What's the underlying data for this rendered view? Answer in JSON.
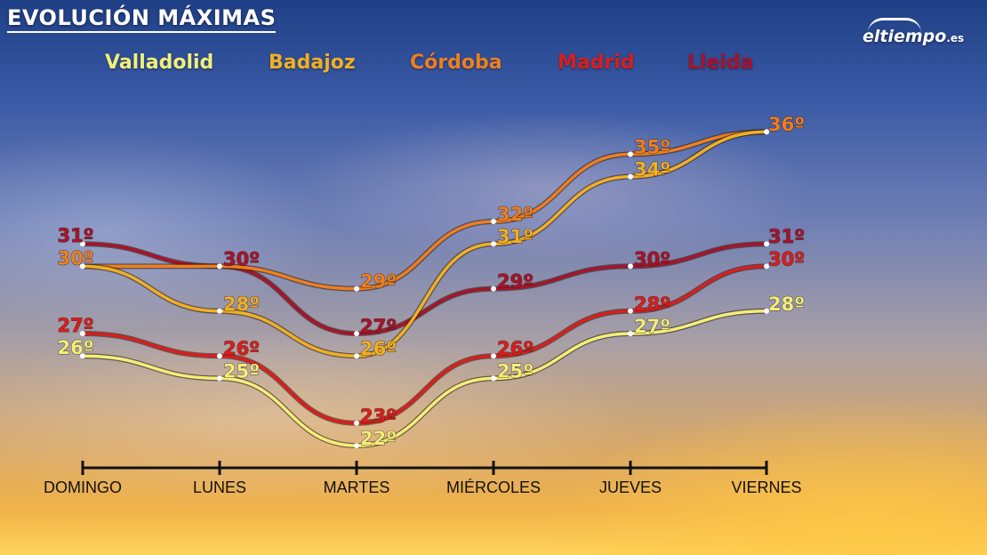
{
  "title": "EVOLUCIÓN MÁXIMAS",
  "logo": {
    "name": "eltiempo",
    "suffix": ".es",
    "icon": "cloud-icon"
  },
  "chart_data": {
    "type": "line",
    "title": "EVOLUCIÓN MÁXIMAS",
    "categories": [
      "DOMINGO",
      "LUNES",
      "MARTES",
      "MIÉRCOLES",
      "JUEVES",
      "VIERNES"
    ],
    "unit": "º",
    "ylim": [
      22,
      36
    ],
    "grid": false,
    "legend_position": "top",
    "series": [
      {
        "name": "Valladolid",
        "color": "#f2ef7a",
        "values": [
          26,
          25,
          22,
          25,
          27,
          28
        ]
      },
      {
        "name": "Badajoz",
        "color": "#f0b024",
        "values": [
          30,
          28,
          26,
          31,
          34,
          36
        ]
      },
      {
        "name": "Córdoba",
        "color": "#ee7f1e",
        "values": [
          30,
          30,
          29,
          32,
          35,
          36
        ]
      },
      {
        "name": "Madrid",
        "color": "#d81e1e",
        "values": [
          27,
          26,
          23,
          26,
          28,
          30
        ]
      },
      {
        "name": "Lleida",
        "color": "#a5142a",
        "values": [
          31,
          30,
          27,
          29,
          30,
          31
        ]
      }
    ],
    "data_labels": [
      {
        "series": "Lleida",
        "index": 0,
        "text": "31º"
      },
      {
        "series": "Córdoba",
        "index": 0,
        "text": "30º"
      },
      {
        "series": "Madrid",
        "index": 0,
        "text": "27º"
      },
      {
        "series": "Valladolid",
        "index": 0,
        "text": "26º"
      },
      {
        "series": "Lleida",
        "index": 1,
        "text": "30º"
      },
      {
        "series": "Badajoz",
        "index": 1,
        "text": "28º"
      },
      {
        "series": "Madrid",
        "index": 1,
        "text": "26º"
      },
      {
        "series": "Valladolid",
        "index": 1,
        "text": "25º"
      },
      {
        "series": "Córdoba",
        "index": 2,
        "text": "29º"
      },
      {
        "series": "Lleida",
        "index": 2,
        "text": "27º"
      },
      {
        "series": "Badajoz",
        "index": 2,
        "text": "26º"
      },
      {
        "series": "Madrid",
        "index": 2,
        "text": "23º"
      },
      {
        "series": "Valladolid",
        "index": 2,
        "text": "22º"
      },
      {
        "series": "Córdoba",
        "index": 3,
        "text": "32º"
      },
      {
        "series": "Badajoz",
        "index": 3,
        "text": "31º"
      },
      {
        "series": "Lleida",
        "index": 3,
        "text": "29º"
      },
      {
        "series": "Madrid",
        "index": 3,
        "text": "26º"
      },
      {
        "series": "Valladolid",
        "index": 3,
        "text": "25º"
      },
      {
        "series": "Córdoba",
        "index": 4,
        "text": "35º"
      },
      {
        "series": "Badajoz",
        "index": 4,
        "text": "34º"
      },
      {
        "series": "Lleida",
        "index": 4,
        "text": "30º"
      },
      {
        "series": "Madrid",
        "index": 4,
        "text": "28º"
      },
      {
        "series": "Valladolid",
        "index": 4,
        "text": "27º"
      },
      {
        "series": "Córdoba",
        "index": 5,
        "text": "36º"
      },
      {
        "series": "Lleida",
        "index": 5,
        "text": "31º"
      },
      {
        "series": "Madrid",
        "index": 5,
        "text": "30º"
      },
      {
        "series": "Valladolid",
        "index": 5,
        "text": "28º"
      }
    ]
  }
}
